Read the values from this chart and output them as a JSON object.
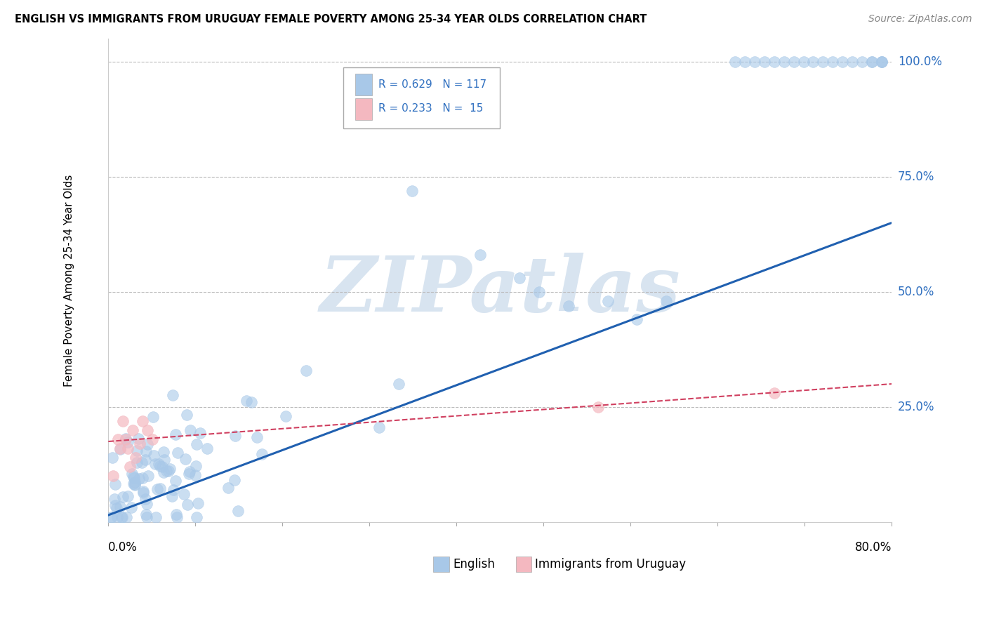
{
  "title": "ENGLISH VS IMMIGRANTS FROM URUGUAY FEMALE POVERTY AMONG 25-34 YEAR OLDS CORRELATION CHART",
  "source": "Source: ZipAtlas.com",
  "ylabel": "Female Poverty Among 25-34 Year Olds",
  "right_yticks": [
    "100.0%",
    "75.0%",
    "50.0%",
    "25.0%"
  ],
  "right_ytick_vals": [
    1.0,
    0.75,
    0.5,
    0.25
  ],
  "legend_r_english": "R = 0.629",
  "legend_n_english": "N = 117",
  "legend_r_uruguay": "R = 0.233",
  "legend_n_uruguay": "N =  15",
  "legend_label_english": "English",
  "legend_label_uruguay": "Immigrants from Uruguay",
  "english_color": "#a8c8e8",
  "uruguay_color": "#f4b8c0",
  "english_line_color": "#2060b0",
  "uruguay_line_color": "#d04060",
  "text_blue": "#3070c0",
  "watermark_color": "#d8e4f0",
  "xlim": [
    0.0,
    0.8
  ],
  "ylim": [
    0.0,
    1.05
  ],
  "english_fit_x": [
    0.0,
    0.8
  ],
  "english_fit_y": [
    0.015,
    0.65
  ],
  "uruguay_fit_x": [
    0.0,
    0.8
  ],
  "uruguay_fit_y": [
    0.175,
    0.3
  ]
}
